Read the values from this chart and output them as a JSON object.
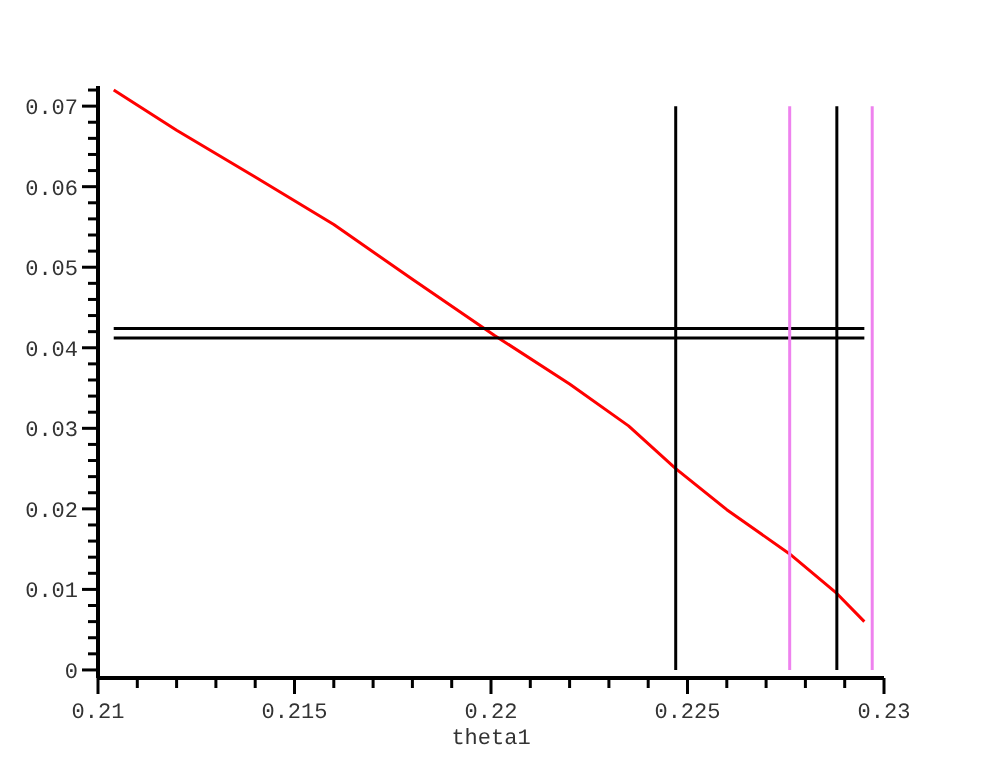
{
  "chart_data": {
    "type": "line",
    "xlabel": "theta1",
    "xlim": [
      0.21,
      0.23
    ],
    "ylim": [
      -0.001,
      0.0725
    ],
    "xticks": [
      0.21,
      {
        "value": 0.211,
        "label": null
      },
      {
        "value": 0.212,
        "label": null
      },
      {
        "value": 0.213,
        "label": null
      },
      {
        "value": 0.214,
        "label": null
      },
      0.215,
      {
        "value": 0.216,
        "label": null
      },
      {
        "value": 0.217,
        "label": null
      },
      {
        "value": 0.218,
        "label": null
      },
      {
        "value": 0.219,
        "label": null
      },
      0.22,
      {
        "value": 0.221,
        "label": null
      },
      {
        "value": 0.222,
        "label": null
      },
      {
        "value": 0.223,
        "label": null
      },
      {
        "value": 0.224,
        "label": null
      },
      0.225,
      {
        "value": 0.226,
        "label": null
      },
      {
        "value": 0.227,
        "label": null
      },
      {
        "value": 0.228,
        "label": null
      },
      {
        "value": 0.229,
        "label": null
      },
      0.23
    ],
    "yticks": [
      0,
      {
        "value": 0.002,
        "label": null
      },
      {
        "value": 0.004,
        "label": null
      },
      {
        "value": 0.006,
        "label": null
      },
      {
        "value": 0.008,
        "label": null
      },
      0.01,
      {
        "value": 0.012,
        "label": null
      },
      {
        "value": 0.014,
        "label": null
      },
      {
        "value": 0.016,
        "label": null
      },
      {
        "value": 0.018,
        "label": null
      },
      0.02,
      {
        "value": 0.022,
        "label": null
      },
      {
        "value": 0.024,
        "label": null
      },
      {
        "value": 0.026,
        "label": null
      },
      {
        "value": 0.028,
        "label": null
      },
      0.03,
      {
        "value": 0.032,
        "label": null
      },
      {
        "value": 0.034,
        "label": null
      },
      {
        "value": 0.036,
        "label": null
      },
      {
        "value": 0.038,
        "label": null
      },
      0.04,
      {
        "value": 0.042,
        "label": null
      },
      {
        "value": 0.044,
        "label": null
      },
      {
        "value": 0.046,
        "label": null
      },
      {
        "value": 0.048,
        "label": null
      },
      0.05,
      {
        "value": 0.052,
        "label": null
      },
      {
        "value": 0.054,
        "label": null
      },
      {
        "value": 0.056,
        "label": null
      },
      {
        "value": 0.058,
        "label": null
      },
      0.06,
      {
        "value": 0.062,
        "label": null
      },
      {
        "value": 0.064,
        "label": null
      },
      {
        "value": 0.066,
        "label": null
      },
      {
        "value": 0.068,
        "label": null
      },
      0.07,
      {
        "value": 0.072,
        "label": null
      }
    ],
    "grid": false,
    "marker": "none",
    "line_style": "solid",
    "series": [
      {
        "color": "#ff0000",
        "x": [
          0.2104,
          0.212,
          0.214,
          0.216,
          0.218,
          0.2201,
          0.222,
          0.2235,
          0.2247,
          0.226,
          0.2276,
          0.2288,
          0.2295
        ],
        "values": [
          0.072,
          0.067,
          0.0612,
          0.0553,
          0.0485,
          0.0415,
          0.0355,
          0.0303,
          0.025,
          0.0199,
          0.0144,
          0.0095,
          0.006
        ]
      },
      {
        "color": "#000000",
        "x": [
          0.2104,
          0.2295
        ],
        "values": [
          0.0424,
          0.0424
        ]
      },
      {
        "color": "#000000",
        "x": [
          0.2104,
          0.2295
        ],
        "values": [
          0.0412,
          0.0412
        ]
      },
      {
        "color": "#000000",
        "x": [
          0.2247,
          0.2247
        ],
        "values": [
          0,
          0.07
        ]
      },
      {
        "color": "#ee82ee",
        "x": [
          0.2276,
          0.2276
        ],
        "values": [
          0,
          0.07
        ]
      },
      {
        "color": "#000000",
        "x": [
          0.2288,
          0.2288
        ],
        "values": [
          0,
          0.07
        ]
      },
      {
        "color": "#ee82ee",
        "x": [
          0.2297,
          0.2297
        ],
        "values": [
          0,
          0.07
        ]
      }
    ]
  }
}
